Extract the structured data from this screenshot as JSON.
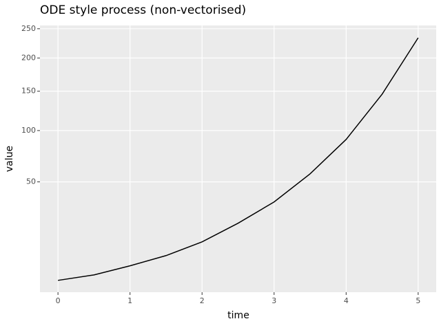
{
  "chart_data": {
    "type": "line",
    "title": "ODE style process (non-vectorised)",
    "x_label": "time",
    "y_label": "value",
    "yscale": "sqrt",
    "x": [
      0,
      0.5,
      1,
      1.5,
      2,
      2.5,
      3,
      3.5,
      4,
      4.5,
      5
    ],
    "series": [
      {
        "color": "#000000",
        "values": [
          2.1,
          3.1,
          5.2,
          8.2,
          13.3,
          22.2,
          35.1,
          56.7,
          90.1,
          145.9,
          233.9
        ]
      }
    ],
    "xlim": [
      -0.25,
      5.25
    ],
    "xticks": [
      0,
      1,
      2,
      3,
      4,
      5
    ],
    "ylim": [
      0.6,
      256
    ],
    "yticks": [
      50,
      100,
      150,
      200,
      250
    ],
    "grid": true
  }
}
